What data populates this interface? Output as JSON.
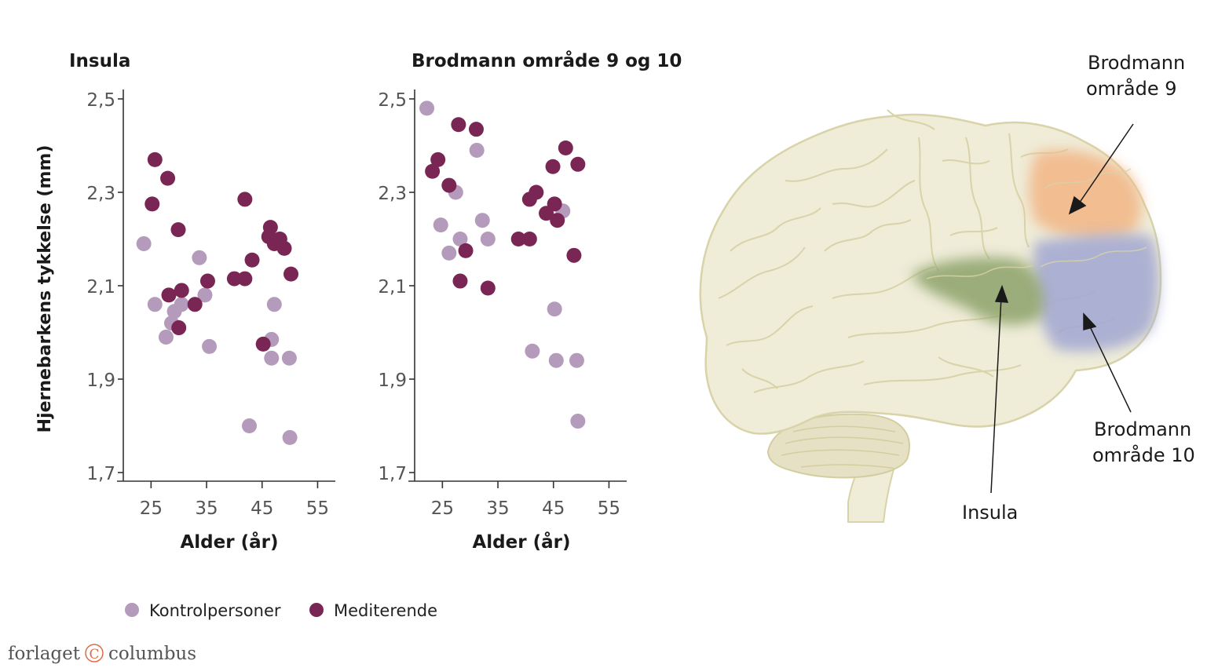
{
  "chart_data": [
    {
      "type": "scatter",
      "title": "Insula",
      "xlabel": "Alder (år)",
      "ylabel": "Hjernebarkens tykkelse (mm)",
      "xlim": [
        20,
        58
      ],
      "ylim": [
        1.7,
        2.52
      ],
      "xticks": [
        25,
        35,
        45,
        55
      ],
      "yticks": [
        1.7,
        1.9,
        2.1,
        2.3,
        2.5
      ],
      "ytick_labels": [
        "1,7",
        "1,9",
        "2,1",
        "2,3",
        "2,5"
      ],
      "xtick_labels": [
        "25",
        "35",
        "45",
        "55"
      ],
      "series": [
        {
          "name": "Kontrolpersoner",
          "color": "#b49abb",
          "points": [
            [
              23.7,
              2.19
            ],
            [
              25.7,
              2.06
            ],
            [
              27.7,
              1.99
            ],
            [
              28.7,
              2.02
            ],
            [
              29.2,
              2.045
            ],
            [
              30.5,
              2.06
            ],
            [
              33.7,
              2.16
            ],
            [
              34.7,
              2.08
            ],
            [
              35.5,
              1.97
            ],
            [
              42.7,
              1.8
            ],
            [
              46.7,
              1.985
            ],
            [
              46.7,
              1.945
            ],
            [
              47.2,
              2.06
            ],
            [
              49.9,
              1.945
            ],
            [
              50.0,
              1.775
            ]
          ]
        },
        {
          "name": "Mediterende",
          "color": "#7a2654",
          "points": [
            [
              25.2,
              2.275
            ],
            [
              25.7,
              2.37
            ],
            [
              28.0,
              2.33
            ],
            [
              28.2,
              2.08
            ],
            [
              29.9,
              2.22
            ],
            [
              30.0,
              2.01
            ],
            [
              30.5,
              2.09
            ],
            [
              32.9,
              2.06
            ],
            [
              35.2,
              2.11
            ],
            [
              40.0,
              2.115
            ],
            [
              41.9,
              2.115
            ],
            [
              41.9,
              2.285
            ],
            [
              43.2,
              2.155
            ],
            [
              45.2,
              1.975
            ],
            [
              46.2,
              2.205
            ],
            [
              46.5,
              2.225
            ],
            [
              47.2,
              2.19
            ],
            [
              48.2,
              2.2
            ],
            [
              49.0,
              2.18
            ],
            [
              50.2,
              2.125
            ]
          ]
        }
      ]
    },
    {
      "type": "scatter",
      "title": "Brodmann område 9 og 10",
      "xlabel": "Alder (år)",
      "ylabel": "",
      "xlim": [
        20,
        58
      ],
      "ylim": [
        1.7,
        2.52
      ],
      "xticks": [
        25,
        35,
        45,
        55
      ],
      "yticks": [
        1.7,
        1.9,
        2.1,
        2.3,
        2.5
      ],
      "ytick_labels": [
        "1,7",
        "1,9",
        "2,1",
        "2,3",
        "2,5"
      ],
      "xtick_labels": [
        "25",
        "35",
        "45",
        "55"
      ],
      "series": [
        {
          "name": "Kontrolpersoner",
          "color": "#b49abb",
          "points": [
            [
              22.2,
              2.48
            ],
            [
              24.7,
              2.23
            ],
            [
              26.2,
              2.17
            ],
            [
              27.4,
              2.3
            ],
            [
              28.2,
              2.2
            ],
            [
              31.2,
              2.39
            ],
            [
              32.2,
              2.24
            ],
            [
              33.2,
              2.2
            ],
            [
              41.2,
              1.96
            ],
            [
              45.2,
              2.05
            ],
            [
              45.5,
              1.94
            ],
            [
              46.7,
              2.26
            ],
            [
              49.2,
              1.94
            ],
            [
              49.4,
              1.81
            ]
          ]
        },
        {
          "name": "Mediterende",
          "color": "#7a2654",
          "points": [
            [
              23.2,
              2.345
            ],
            [
              24.2,
              2.37
            ],
            [
              26.2,
              2.315
            ],
            [
              27.9,
              2.445
            ],
            [
              28.2,
              2.11
            ],
            [
              29.2,
              2.175
            ],
            [
              31.1,
              2.435
            ],
            [
              33.2,
              2.095
            ],
            [
              38.7,
              2.2
            ],
            [
              40.7,
              2.2
            ],
            [
              40.7,
              2.285
            ],
            [
              41.9,
              2.3
            ],
            [
              43.7,
              2.255
            ],
            [
              44.9,
              2.355
            ],
            [
              45.2,
              2.275
            ],
            [
              45.7,
              2.24
            ],
            [
              47.2,
              2.395
            ],
            [
              48.7,
              2.165
            ],
            [
              49.4,
              2.36
            ]
          ]
        }
      ]
    }
  ],
  "legend": {
    "items": [
      {
        "label": "Kontrolpersoner",
        "color": "#b49abb"
      },
      {
        "label": "Mediterende",
        "color": "#7a2654"
      }
    ],
    "placement": "bottom"
  },
  "brain": {
    "labels": {
      "area9_line1": "Brodmann",
      "area9_line2": "område 9",
      "area10_line1": "Brodmann",
      "area10_line2": "område 10",
      "insula": "Insula"
    },
    "colors": {
      "brain_fill": "#efecd8",
      "brain_stroke": "#d8d3a8",
      "area9": "#f2b98a",
      "area10": "#a5aad2",
      "insula": "#8da36a"
    }
  },
  "publisher": {
    "name_left": "forlaget",
    "symbol": "C",
    "name_right": "columbus",
    "color": "#e06a45"
  }
}
